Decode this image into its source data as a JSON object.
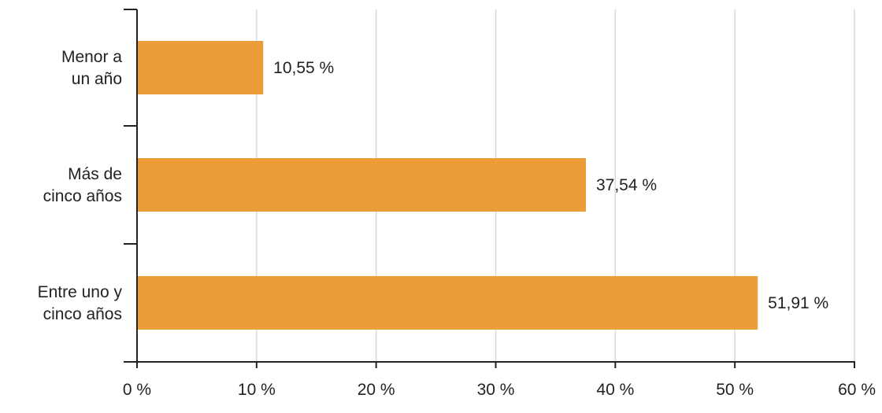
{
  "chart_data": {
    "type": "bar",
    "orientation": "horizontal",
    "categories": [
      [
        "Menor a",
        "un año"
      ],
      [
        "Más de",
        "cinco años"
      ],
      [
        "Entre uno y",
        "cinco años"
      ]
    ],
    "values": [
      10.55,
      37.54,
      51.91
    ],
    "value_labels": [
      "10,55 %",
      "37,54 %",
      "51,91 %"
    ],
    "xlim": [
      0,
      60
    ],
    "x_ticks": [
      0,
      10,
      20,
      30,
      40,
      50,
      60
    ],
    "x_tick_labels": [
      "0 %",
      "10 %",
      "20 %",
      "30 %",
      "40 %",
      "50 %",
      "60 %"
    ],
    "title": "",
    "xlabel": "",
    "ylabel": "",
    "grid": "vertical",
    "legend": "none",
    "bar_color": "#ED9C3A",
    "grid_color": "#D9D9D9",
    "axis_color": "#222222"
  }
}
